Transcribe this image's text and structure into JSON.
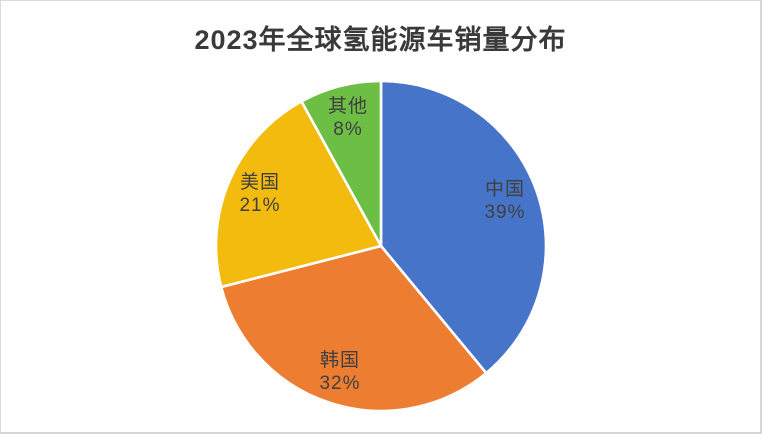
{
  "chart_data": {
    "type": "pie",
    "title": "2023年全球氢能源车销量分布",
    "categories": [
      "中国",
      "韩国",
      "美国",
      "其他"
    ],
    "values": [
      39,
      32,
      21,
      8
    ],
    "value_labels": [
      "39%",
      "32%",
      "21%",
      "8%"
    ],
    "colors": [
      "#4674C9",
      "#ED7D31",
      "#F2BB0D",
      "#6CBE45"
    ],
    "start_angle": 0,
    "direction": "clockwise",
    "legend": "none",
    "labels_position": "inside",
    "title_color": "#3A3A3A",
    "label_text_color": "#404040"
  }
}
